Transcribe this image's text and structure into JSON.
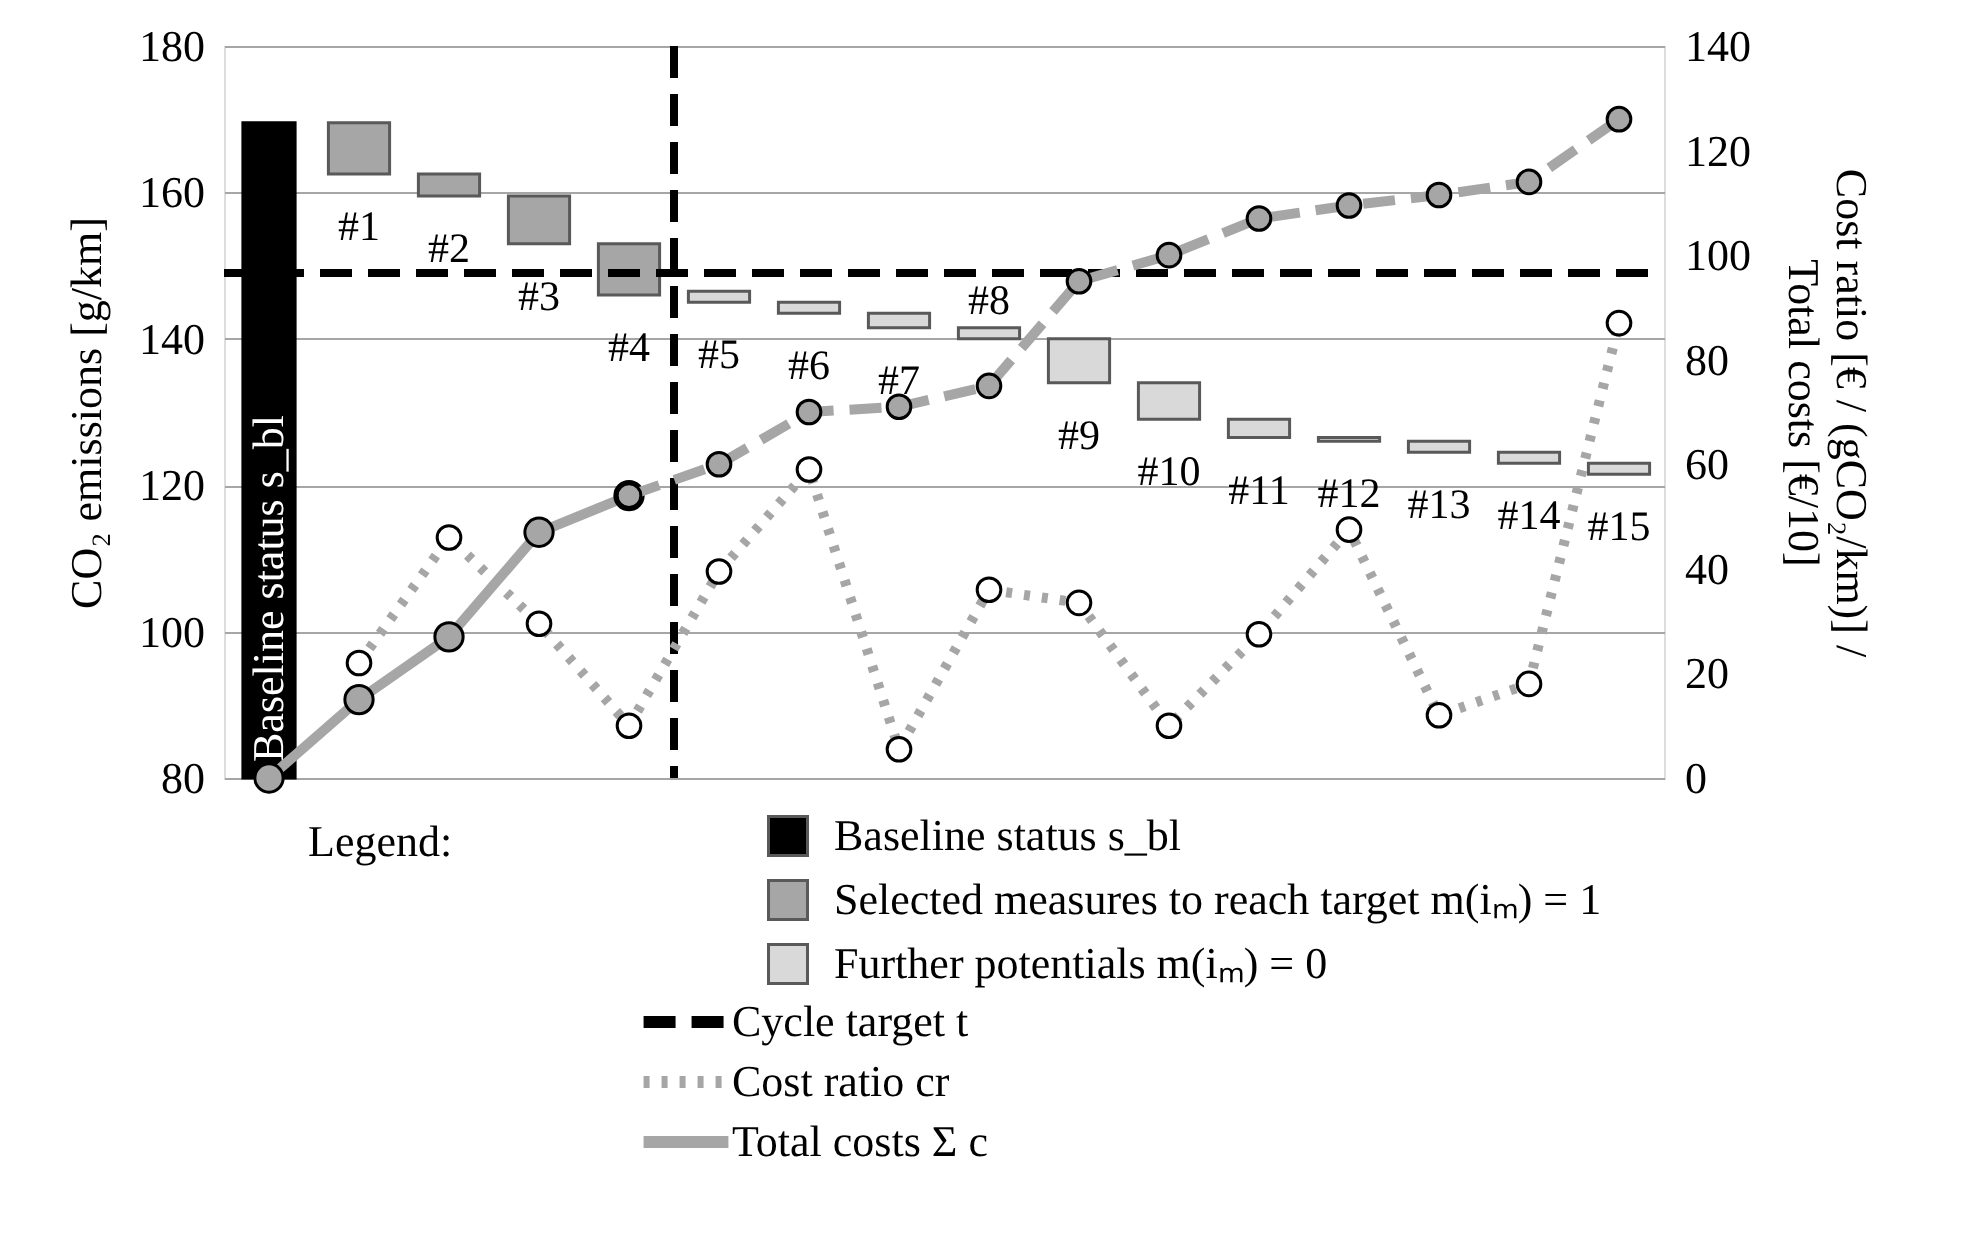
{
  "chart_data": {
    "type": "bar",
    "categories": [
      "Baseline status s_bl",
      "#1",
      "#2",
      "#3",
      "#4",
      "#5",
      "#6",
      "#7",
      "#8",
      "#9",
      "#10",
      "#11",
      "#12",
      "#13",
      "#14",
      "#15"
    ],
    "ylabel": "CO₂ emissions [g/km]",
    "y2label": "Cost ratio [€ / (gCO₂/km)] /\nTotal costs [€/10]",
    "ylim": [
      80,
      180
    ],
    "yticks": [
      80,
      100,
      120,
      140,
      160,
      180
    ],
    "y2lim": [
      0,
      140
    ],
    "y2ticks": [
      0,
      20,
      40,
      60,
      80,
      100,
      120,
      140
    ],
    "grid": "y",
    "tick_labels": "y",
    "legend": "bottom",
    "legend_title": "Legend:",
    "marker": "circle",
    "series": [
      {
        "name": "Baseline status s_bl",
        "color": "#000000",
        "values": [
          89.5,
          null,
          null,
          null,
          null,
          null,
          null,
          null,
          null,
          null,
          null,
          null,
          null,
          null,
          null,
          null
        ],
        "base": [
          80,
          null,
          null,
          null,
          null,
          null,
          null,
          null,
          null,
          null,
          null,
          null,
          null,
          null,
          null,
          null
        ]
      },
      {
        "name": "Selected measures to reach target m(iₘ) = 1",
        "color": "#a6a6a6",
        "values": [
          null,
          7,
          3,
          6.5,
          7,
          null,
          null,
          null,
          null,
          null,
          null,
          null,
          null,
          null,
          null,
          null
        ],
        "base": [
          null,
          162.5,
          159.5,
          153,
          146,
          null,
          null,
          null,
          null,
          null,
          null,
          null,
          null,
          null,
          null,
          null
        ]
      },
      {
        "name": "Further potentials m(iₘ) = 0",
        "color": "#d9d9d9",
        "values": [
          null,
          null,
          null,
          null,
          null,
          1.5,
          1.5,
          2,
          1.5,
          6,
          5,
          2.5,
          0.5,
          1.5,
          1.5,
          1.5
        ],
        "base": [
          null,
          null,
          null,
          null,
          null,
          145,
          143.5,
          141.5,
          140,
          134,
          129,
          126.5,
          126,
          124.5,
          123,
          121.5
        ]
      },
      {
        "name": "Cost ratio cr",
        "type": "line",
        "axis": "y2",
        "color": "#a6a6a6",
        "line_style": "dotted",
        "values": [
          null,
          22,
          46,
          29.5,
          10,
          39.5,
          59,
          5.5,
          36,
          33.5,
          10,
          27.5,
          47.5,
          12,
          18,
          87
        ]
      },
      {
        "name": "Total costs Σ c",
        "type": "line",
        "axis": "y2",
        "color": "#a6a6a6",
        "line_style": "solid",
        "values": [
          0,
          15,
          27,
          47,
          54,
          null,
          null,
          null,
          null,
          null,
          null,
          null,
          null,
          null,
          null,
          null
        ]
      },
      {
        "type": "line",
        "axis": "y2",
        "color": "#a6a6a6",
        "line_style": "dashed",
        "values": [
          null,
          null,
          null,
          null,
          54,
          60,
          70,
          71,
          75,
          95,
          100,
          107,
          109.5,
          111.5,
          114,
          126
        ]
      }
    ],
    "ref_lines": [
      {
        "axis": "y",
        "value": 149,
        "label": "Cycle target t",
        "color": "#000000",
        "line_style": "dashed"
      },
      {
        "axis": "x",
        "value": "#5",
        "color": "#000000",
        "line_style": "dashed"
      }
    ]
  }
}
